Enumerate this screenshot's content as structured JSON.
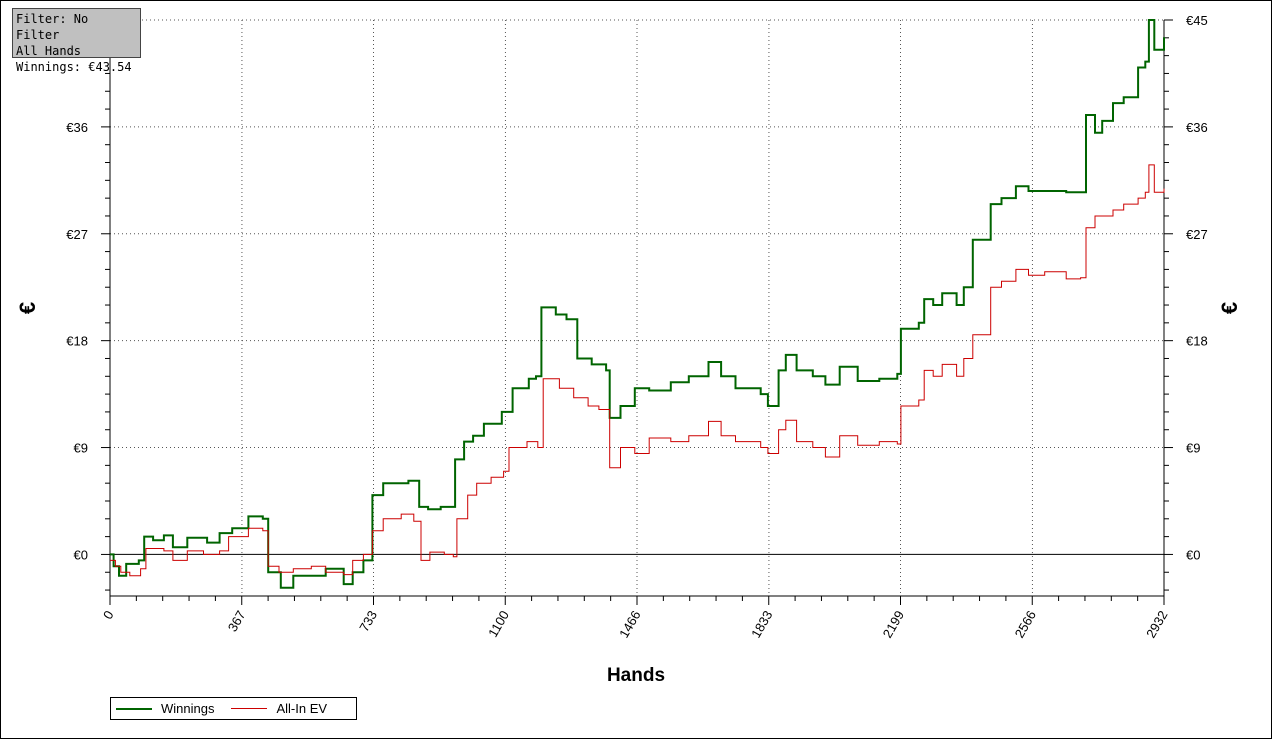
{
  "info_box": {
    "filter": "Filter: No Filter",
    "hands": "All Hands",
    "winnings": "Winnings: €43.54"
  },
  "chart_data": {
    "type": "line",
    "xlabel": "Hands",
    "ylabel_left": "€",
    "ylabel_right": "€",
    "xlim": [
      0,
      2932
    ],
    "ylim": [
      -3.5,
      45
    ],
    "x_ticks": [
      0,
      367,
      733,
      1100,
      1466,
      1833,
      2199,
      2566,
      2932
    ],
    "x_tick_labels": [
      "0",
      "367",
      "733",
      "1100",
      "1466",
      "1833",
      "2199",
      "2566",
      "2932"
    ],
    "y_ticks": [
      0,
      9,
      18,
      27,
      36,
      45
    ],
    "y_tick_labels_left": [
      "€0",
      "€9",
      "€18",
      "€27",
      "€36",
      ""
    ],
    "y_tick_labels_right": [
      "€0",
      "€9",
      "€18",
      "€27",
      "€36",
      "€45"
    ],
    "grid": true,
    "legend_position": "bottom-left",
    "series": [
      {
        "name": "Winnings",
        "color": "#006400",
        "points": [
          [
            0,
            0
          ],
          [
            10,
            -1
          ],
          [
            25,
            -1.8
          ],
          [
            45,
            -0.8
          ],
          [
            80,
            -0.5
          ],
          [
            95,
            1.5
          ],
          [
            120,
            1.2
          ],
          [
            150,
            1.6
          ],
          [
            175,
            0.6
          ],
          [
            215,
            1.4
          ],
          [
            270,
            1.0
          ],
          [
            305,
            1.8
          ],
          [
            340,
            2.2
          ],
          [
            385,
            3.2
          ],
          [
            425,
            3.0
          ],
          [
            440,
            -1.5
          ],
          [
            475,
            -2.8
          ],
          [
            510,
            -1.8
          ],
          [
            560,
            -1.8
          ],
          [
            600,
            -1.2
          ],
          [
            650,
            -2.5
          ],
          [
            675,
            -1.5
          ],
          [
            705,
            -0.5
          ],
          [
            730,
            5.0
          ],
          [
            760,
            6.0
          ],
          [
            810,
            6.0
          ],
          [
            830,
            6.2
          ],
          [
            860,
            4.0
          ],
          [
            885,
            3.8
          ],
          [
            920,
            4.0
          ],
          [
            945,
            4.0
          ],
          [
            960,
            8.0
          ],
          [
            985,
            9.5
          ],
          [
            1010,
            10.0
          ],
          [
            1040,
            11.0
          ],
          [
            1090,
            12.0
          ],
          [
            1120,
            14.0
          ],
          [
            1165,
            14.8
          ],
          [
            1185,
            15.0
          ],
          [
            1200,
            20.8
          ],
          [
            1240,
            20.2
          ],
          [
            1270,
            19.8
          ],
          [
            1300,
            16.5
          ],
          [
            1340,
            16.0
          ],
          [
            1380,
            15.5
          ],
          [
            1390,
            11.5
          ],
          [
            1420,
            12.5
          ],
          [
            1460,
            14.0
          ],
          [
            1500,
            13.8
          ],
          [
            1560,
            14.5
          ],
          [
            1610,
            15.0
          ],
          [
            1665,
            16.2
          ],
          [
            1700,
            15.0
          ],
          [
            1740,
            14.0
          ],
          [
            1810,
            13.5
          ],
          [
            1830,
            12.5
          ],
          [
            1860,
            15.5
          ],
          [
            1880,
            16.8
          ],
          [
            1910,
            15.5
          ],
          [
            1955,
            15.0
          ],
          [
            1990,
            14.3
          ],
          [
            2030,
            15.8
          ],
          [
            2080,
            14.6
          ],
          [
            2140,
            14.8
          ],
          [
            2190,
            15.2
          ],
          [
            2200,
            19.0
          ],
          [
            2250,
            19.5
          ],
          [
            2265,
            21.5
          ],
          [
            2290,
            21.0
          ],
          [
            2315,
            22.0
          ],
          [
            2355,
            21.0
          ],
          [
            2375,
            22.5
          ],
          [
            2400,
            26.5
          ],
          [
            2425,
            26.5
          ],
          [
            2450,
            29.5
          ],
          [
            2480,
            30.0
          ],
          [
            2520,
            31.0
          ],
          [
            2555,
            30.6
          ],
          [
            2600,
            30.6
          ],
          [
            2660,
            30.5
          ],
          [
            2700,
            30.5
          ],
          [
            2715,
            37.0
          ],
          [
            2740,
            35.5
          ],
          [
            2760,
            36.5
          ],
          [
            2790,
            38.0
          ],
          [
            2820,
            38.5
          ],
          [
            2860,
            41.0
          ],
          [
            2880,
            41.5
          ],
          [
            2890,
            45.0
          ],
          [
            2905,
            42.5
          ],
          [
            2932,
            43.54
          ]
        ]
      },
      {
        "name": "All-In EV",
        "color": "#cc0000",
        "points": [
          [
            0,
            -0.5
          ],
          [
            15,
            -1
          ],
          [
            30,
            -1.5
          ],
          [
            55,
            -1.8
          ],
          [
            85,
            -1.2
          ],
          [
            100,
            0.5
          ],
          [
            150,
            0.3
          ],
          [
            175,
            -0.5
          ],
          [
            215,
            0.3
          ],
          [
            260,
            0
          ],
          [
            305,
            0.3
          ],
          [
            330,
            1.5
          ],
          [
            365,
            1.5
          ],
          [
            385,
            2.2
          ],
          [
            425,
            2.0
          ],
          [
            440,
            -1.0
          ],
          [
            470,
            -1.5
          ],
          [
            510,
            -1.2
          ],
          [
            560,
            -1.0
          ],
          [
            600,
            -1.5
          ],
          [
            650,
            -1.7
          ],
          [
            675,
            -0.5
          ],
          [
            705,
            0
          ],
          [
            730,
            2.0
          ],
          [
            760,
            3.0
          ],
          [
            810,
            3.4
          ],
          [
            845,
            2.8
          ],
          [
            865,
            -0.5
          ],
          [
            890,
            0.2
          ],
          [
            930,
            0
          ],
          [
            955,
            -0.2
          ],
          [
            965,
            3.0
          ],
          [
            995,
            5.0
          ],
          [
            1020,
            6.0
          ],
          [
            1060,
            6.5
          ],
          [
            1095,
            7.0
          ],
          [
            1110,
            9.0
          ],
          [
            1160,
            9.5
          ],
          [
            1190,
            9.0
          ],
          [
            1205,
            14.8
          ],
          [
            1250,
            14.0
          ],
          [
            1290,
            13.2
          ],
          [
            1330,
            12.5
          ],
          [
            1360,
            12.2
          ],
          [
            1390,
            7.3
          ],
          [
            1420,
            9.0
          ],
          [
            1460,
            8.5
          ],
          [
            1500,
            9.8
          ],
          [
            1560,
            9.5
          ],
          [
            1610,
            10.0
          ],
          [
            1665,
            11.2
          ],
          [
            1700,
            10.0
          ],
          [
            1740,
            9.5
          ],
          [
            1810,
            9.0
          ],
          [
            1830,
            8.5
          ],
          [
            1860,
            10.5
          ],
          [
            1880,
            11.3
          ],
          [
            1910,
            9.5
          ],
          [
            1955,
            9.0
          ],
          [
            1990,
            8.2
          ],
          [
            2030,
            10.0
          ],
          [
            2080,
            9.2
          ],
          [
            2140,
            9.5
          ],
          [
            2190,
            9.3
          ],
          [
            2200,
            12.5
          ],
          [
            2250,
            13.0
          ],
          [
            2265,
            15.5
          ],
          [
            2290,
            15.0
          ],
          [
            2315,
            16.0
          ],
          [
            2355,
            15.0
          ],
          [
            2375,
            16.5
          ],
          [
            2400,
            18.5
          ],
          [
            2425,
            18.5
          ],
          [
            2450,
            22.5
          ],
          [
            2480,
            23.0
          ],
          [
            2520,
            24.0
          ],
          [
            2555,
            23.5
          ],
          [
            2600,
            23.8
          ],
          [
            2660,
            23.2
          ],
          [
            2700,
            23.3
          ],
          [
            2715,
            27.5
          ],
          [
            2740,
            28.5
          ],
          [
            2760,
            28.5
          ],
          [
            2790,
            29.0
          ],
          [
            2820,
            29.5
          ],
          [
            2860,
            30.0
          ],
          [
            2880,
            30.5
          ],
          [
            2890,
            32.8
          ],
          [
            2905,
            30.5
          ],
          [
            2932,
            30.8
          ]
        ]
      }
    ]
  }
}
